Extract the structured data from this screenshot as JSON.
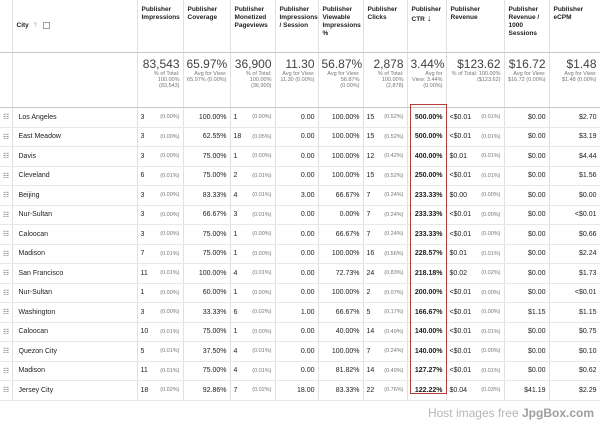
{
  "columns": {
    "city": "City",
    "hint": "?",
    "impressions": "Publisher Impressions",
    "coverage": "Publisher Coverage",
    "pageviews": "Publisher Monetized Pageviews",
    "imp_session": "Publisher Impressions / Session",
    "viewable": "Publisher Viewable Impressions %",
    "clicks": "Publisher Clicks",
    "ctr": "Publisher CTR",
    "sort_arrow": "↓",
    "revenue": "Publisher Revenue",
    "rev_1000": "Publisher Revenue / 1000 Sessions",
    "ecpm": "Publisher eCPM"
  },
  "totals": {
    "impressions": {
      "value": "83,543",
      "sub": "% of Total: 100.00% (83,543)"
    },
    "coverage": {
      "value": "65.97%",
      "sub": "Avg for View: 65.97% (0.00%)"
    },
    "pageviews": {
      "value": "36,900",
      "sub": "% of Total: 100.00% (36,900)"
    },
    "imp_session": {
      "value": "11.30",
      "sub": "Avg for View: 11.30 (0.00%)"
    },
    "viewable": {
      "value": "56.87%",
      "sub": "Avg for View: 56.87% (0.00%)"
    },
    "clicks": {
      "value": "2,878",
      "sub": "% of Total: 100.00% (2,878)"
    },
    "ctr": {
      "value": "3.44%",
      "sub": "Avg for View: 3.44% (0.00%)"
    },
    "revenue": {
      "value": "$123.62",
      "sub": "% of Total: 100.00% ($123.62)"
    },
    "rev_1000": {
      "value": "$16.72",
      "sub": "Avg for View: $16.72 (0.00%)"
    },
    "ecpm": {
      "value": "$1.48",
      "sub": "Avg for View: $1.48 (0.00%)"
    }
  },
  "rows": [
    {
      "city": "Los Angeles",
      "imp": "3",
      "imp_pct": "(0.00%)",
      "cov": "100.00%",
      "pv": "1",
      "pv_pct": "(0.00%)",
      "ips": "0.00",
      "view": "100.00%",
      "clk": "15",
      "clk_pct": "(0.52%)",
      "ctr": "500.00%",
      "rev": "<$0.01",
      "rev_pct": "(0.01%)",
      "r1k": "$0.00",
      "ecpm": "$2.70"
    },
    {
      "city": "East Meadow",
      "imp": "3",
      "imp_pct": "(0.00%)",
      "cov": "62.55%",
      "pv": "18",
      "pv_pct": "(0.05%)",
      "ips": "0.00",
      "view": "100.00%",
      "clk": "15",
      "clk_pct": "(0.52%)",
      "ctr": "500.00%",
      "rev": "<$0.01",
      "rev_pct": "(0.01%)",
      "r1k": "$0.00",
      "ecpm": "$3.19"
    },
    {
      "city": "Davis",
      "imp": "3",
      "imp_pct": "(0.00%)",
      "cov": "75.00%",
      "pv": "1",
      "pv_pct": "(0.00%)",
      "ips": "0.00",
      "view": "100.00%",
      "clk": "12",
      "clk_pct": "(0.42%)",
      "ctr": "400.00%",
      "rev": "$0.01",
      "rev_pct": "(0.01%)",
      "r1k": "$0.00",
      "ecpm": "$4.44"
    },
    {
      "city": "Cleveland",
      "imp": "6",
      "imp_pct": "(0.01%)",
      "cov": "75.00%",
      "pv": "2",
      "pv_pct": "(0.01%)",
      "ips": "0.00",
      "view": "100.00%",
      "clk": "15",
      "clk_pct": "(0.52%)",
      "ctr": "250.00%",
      "rev": "<$0.01",
      "rev_pct": "(0.01%)",
      "r1k": "$0.00",
      "ecpm": "$1.56"
    },
    {
      "city": "Beijing",
      "imp": "3",
      "imp_pct": "(0.00%)",
      "cov": "83.33%",
      "pv": "4",
      "pv_pct": "(0.01%)",
      "ips": "3.00",
      "view": "66.67%",
      "clk": "7",
      "clk_pct": "(0.24%)",
      "ctr": "233.33%",
      "rev": "$0.00",
      "rev_pct": "(0.00%)",
      "r1k": "$0.00",
      "ecpm": "$0.00"
    },
    {
      "city": "Nur-Sultan",
      "imp": "3",
      "imp_pct": "(0.00%)",
      "cov": "66.67%",
      "pv": "3",
      "pv_pct": "(0.01%)",
      "ips": "0.00",
      "view": "0.00%",
      "clk": "7",
      "clk_pct": "(0.24%)",
      "ctr": "233.33%",
      "rev": "<$0.01",
      "rev_pct": "(0.00%)",
      "r1k": "$0.00",
      "ecpm": "<$0.01"
    },
    {
      "city": "Caloocan",
      "imp": "3",
      "imp_pct": "(0.00%)",
      "cov": "75.00%",
      "pv": "1",
      "pv_pct": "(0.00%)",
      "ips": "0.00",
      "view": "66.67%",
      "clk": "7",
      "clk_pct": "(0.24%)",
      "ctr": "233.33%",
      "rev": "<$0.01",
      "rev_pct": "(0.00%)",
      "r1k": "$0.00",
      "ecpm": "$0.66"
    },
    {
      "city": "Madison",
      "imp": "7",
      "imp_pct": "(0.01%)",
      "cov": "75.00%",
      "pv": "1",
      "pv_pct": "(0.00%)",
      "ips": "0.00",
      "view": "100.00%",
      "clk": "16",
      "clk_pct": "(0.56%)",
      "ctr": "228.57%",
      "rev": "$0.01",
      "rev_pct": "(0.01%)",
      "r1k": "$0.00",
      "ecpm": "$2.24"
    },
    {
      "city": "San Francisco",
      "imp": "11",
      "imp_pct": "(0.01%)",
      "cov": "100.00%",
      "pv": "4",
      "pv_pct": "(0.01%)",
      "ips": "0.00",
      "view": "72.73%",
      "clk": "24",
      "clk_pct": "(0.83%)",
      "ctr": "218.18%",
      "rev": "$0.02",
      "rev_pct": "(0.02%)",
      "r1k": "$0.00",
      "ecpm": "$1.73"
    },
    {
      "city": "Nur-Sultan",
      "imp": "1",
      "imp_pct": "(0.00%)",
      "cov": "60.00%",
      "pv": "1",
      "pv_pct": "(0.00%)",
      "ips": "0.00",
      "view": "100.00%",
      "clk": "2",
      "clk_pct": "(0.07%)",
      "ctr": "200.00%",
      "rev": "<$0.01",
      "rev_pct": "(0.00%)",
      "r1k": "$0.00",
      "ecpm": "<$0.01"
    },
    {
      "city": "Washington",
      "imp": "3",
      "imp_pct": "(0.00%)",
      "cov": "33.33%",
      "pv": "6",
      "pv_pct": "(0.02%)",
      "ips": "1.00",
      "view": "66.67%",
      "clk": "5",
      "clk_pct": "(0.17%)",
      "ctr": "166.67%",
      "rev": "<$0.01",
      "rev_pct": "(0.00%)",
      "r1k": "$1.15",
      "ecpm": "$1.15"
    },
    {
      "city": "Caloocan",
      "imp": "10",
      "imp_pct": "(0.01%)",
      "cov": "75.00%",
      "pv": "1",
      "pv_pct": "(0.00%)",
      "ips": "0.00",
      "view": "40.00%",
      "clk": "14",
      "clk_pct": "(0.49%)",
      "ctr": "140.00%",
      "rev": "<$0.01",
      "rev_pct": "(0.01%)",
      "r1k": "$0.00",
      "ecpm": "$0.75"
    },
    {
      "city": "Quezon City",
      "imp": "5",
      "imp_pct": "(0.01%)",
      "cov": "37.50%",
      "pv": "4",
      "pv_pct": "(0.01%)",
      "ips": "0.00",
      "view": "100.00%",
      "clk": "7",
      "clk_pct": "(0.24%)",
      "ctr": "140.00%",
      "rev": "<$0.01",
      "rev_pct": "(0.00%)",
      "r1k": "$0.00",
      "ecpm": "$0.10"
    },
    {
      "city": "Madison",
      "imp": "11",
      "imp_pct": "(0.01%)",
      "cov": "75.00%",
      "pv": "4",
      "pv_pct": "(0.01%)",
      "ips": "0.00",
      "view": "81.82%",
      "clk": "14",
      "clk_pct": "(0.49%)",
      "ctr": "127.27%",
      "rev": "<$0.01",
      "rev_pct": "(0.01%)",
      "r1k": "$0.00",
      "ecpm": "$0.62"
    },
    {
      "city": "Jersey City",
      "imp": "18",
      "imp_pct": "(0.02%)",
      "cov": "92.86%",
      "pv": "7",
      "pv_pct": "(0.02%)",
      "ips": "18.00",
      "view": "83.33%",
      "clk": "22",
      "clk_pct": "(0.76%)",
      "ctr": "122.22%",
      "rev": "$0.04",
      "rev_pct": "(0.03%)",
      "r1k": "$41.19",
      "ecpm": "$2.29"
    }
  ],
  "watermark": {
    "prefix": "Host images free ",
    "brand": "JpgBox.com"
  },
  "colors": {
    "ctr_frame": "#b53a3a",
    "grid": "#e0e0e0"
  }
}
